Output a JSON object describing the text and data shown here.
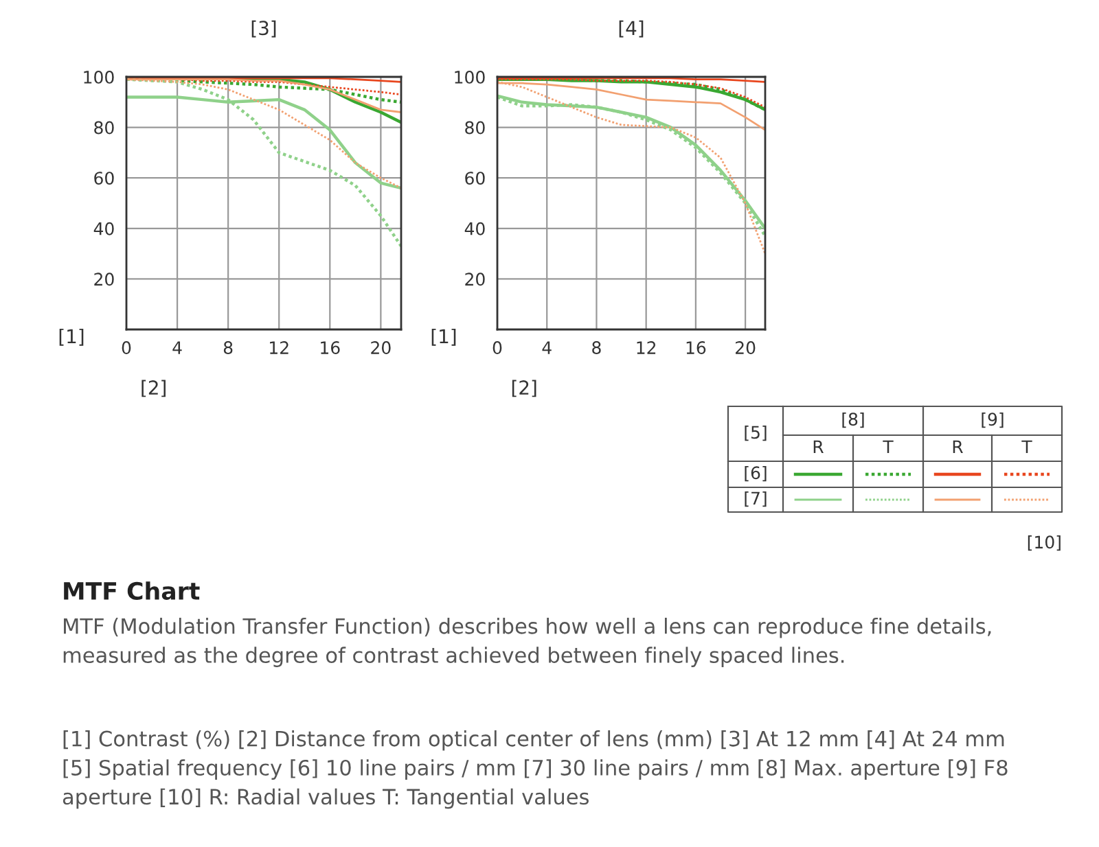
{
  "chart_data": [
    {
      "type": "line",
      "title": "[3]",
      "xlabel": "[2]",
      "ylabel": "[1]",
      "xlim": [
        0,
        21.6
      ],
      "ylim": [
        0,
        100
      ],
      "xticks": [
        0,
        4,
        8,
        12,
        16,
        20
      ],
      "yticks": [
        20,
        40,
        60,
        80,
        100
      ],
      "grid": true,
      "legend": false,
      "x": [
        0,
        2,
        4,
        6,
        8,
        10,
        12,
        14,
        16,
        18,
        20,
        21.6
      ],
      "series": [
        {
          "color": "#3aa832",
          "line_style": "solid",
          "values": [
            99.5,
            99.5,
            99.5,
            99.5,
            99.5,
            99,
            99,
            98,
            95,
            90,
            86,
            82
          ]
        },
        {
          "color": "#3aa832",
          "line_style": "dotted",
          "values": [
            99,
            99,
            98.5,
            98,
            97.5,
            97,
            96,
            95.5,
            95,
            93,
            91,
            90
          ]
        },
        {
          "color": "#e8461e",
          "line_style": "solid",
          "values": [
            99.5,
            99.5,
            99.5,
            99.5,
            99.5,
            99.5,
            99.5,
            99.5,
            99.5,
            99,
            98.5,
            98
          ]
        },
        {
          "color": "#e8461e",
          "line_style": "dotted",
          "values": [
            99,
            99,
            99,
            98.5,
            98.5,
            98,
            98,
            97,
            96,
            95,
            94,
            93
          ]
        },
        {
          "color": "#8fd18a",
          "line_style": "solid",
          "values": [
            92,
            92,
            92,
            91,
            90,
            90.5,
            91,
            87,
            79,
            66,
            58,
            56
          ]
        },
        {
          "color": "#8fd18a",
          "line_style": "dotted",
          "values": [
            99,
            98.5,
            98,
            95,
            91,
            83,
            70,
            66.5,
            63,
            57,
            45,
            33
          ]
        },
        {
          "color": "#f2a070",
          "line_style": "solid",
          "values": [
            99,
            99,
            99,
            99,
            99,
            98.5,
            98.5,
            97,
            95,
            91,
            87,
            86
          ]
        },
        {
          "color": "#f2a070",
          "line_style": "dotted",
          "values": [
            99,
            98.5,
            98,
            97,
            95,
            91,
            87,
            81,
            75,
            66,
            60,
            56
          ]
        }
      ]
    },
    {
      "type": "line",
      "title": "[4]",
      "xlabel": "[2]",
      "ylabel": "[1]",
      "xlim": [
        0,
        21.6
      ],
      "ylim": [
        0,
        100
      ],
      "xticks": [
        0,
        4,
        8,
        12,
        16,
        20
      ],
      "yticks": [
        20,
        40,
        60,
        80,
        100
      ],
      "grid": true,
      "legend": false,
      "x": [
        0,
        2,
        4,
        6,
        8,
        10,
        12,
        14,
        16,
        18,
        20,
        21.6
      ],
      "series": [
        {
          "color": "#3aa832",
          "line_style": "solid",
          "values": [
            99,
            99,
            99,
            98.5,
            98.5,
            98,
            98,
            97,
            96,
            94,
            91,
            87
          ]
        },
        {
          "color": "#3aa832",
          "line_style": "dotted",
          "values": [
            99,
            99,
            99,
            99,
            98.5,
            98.5,
            98,
            97.5,
            97,
            95,
            91,
            87
          ]
        },
        {
          "color": "#e8461e",
          "line_style": "solid",
          "values": [
            99.5,
            99.5,
            99.5,
            99.5,
            99.5,
            99.5,
            99.5,
            99.5,
            99,
            99,
            98.5,
            98
          ]
        },
        {
          "color": "#e8461e",
          "line_style": "dotted",
          "values": [
            99,
            99,
            99,
            99,
            98.5,
            98.5,
            98.5,
            98,
            97,
            95.5,
            92,
            88
          ]
        },
        {
          "color": "#8fd18a",
          "line_style": "solid",
          "values": [
            92.5,
            90,
            89,
            88.5,
            88,
            86,
            84,
            80,
            73,
            63,
            51,
            40
          ]
        },
        {
          "color": "#8fd18a",
          "line_style": "dotted",
          "values": [
            92,
            88.5,
            88.5,
            89,
            88,
            86,
            83,
            79,
            72,
            62,
            50,
            37
          ]
        },
        {
          "color": "#f2a070",
          "line_style": "solid",
          "values": [
            97.5,
            97.5,
            97,
            96,
            95,
            93,
            91,
            90.5,
            90,
            89.5,
            84,
            79
          ]
        },
        {
          "color": "#f2a070",
          "line_style": "dotted",
          "values": [
            98,
            96,
            92,
            88,
            84,
            81,
            80.5,
            80,
            76,
            68,
            50,
            30
          ]
        }
      ]
    },
    {
      "type": "other",
      "title": "MTF Chart",
      "subtitle": "MTF (Modulation Transfer Function) describes how well a lens can reproduce fine details,\nmeasured as the degree of contrast achieved between finely spaced lines.",
      "annotations": [
        "[5]",
        "[8]",
        "[9]",
        "R",
        "T",
        "R",
        "T",
        "[6]",
        "[7]",
        "[10]",
        "[1] Contrast (%) [2] Distance from optical center of lens (mm) [3] At 12 mm [4] At 24 mm\n[5] Spatial frequency [6] 10 line pairs / mm [7] 30 line pairs / mm [8] Max. aperture [9] F8\naperture [10] R: Radial values T: Tangential values"
      ]
    }
  ]
}
